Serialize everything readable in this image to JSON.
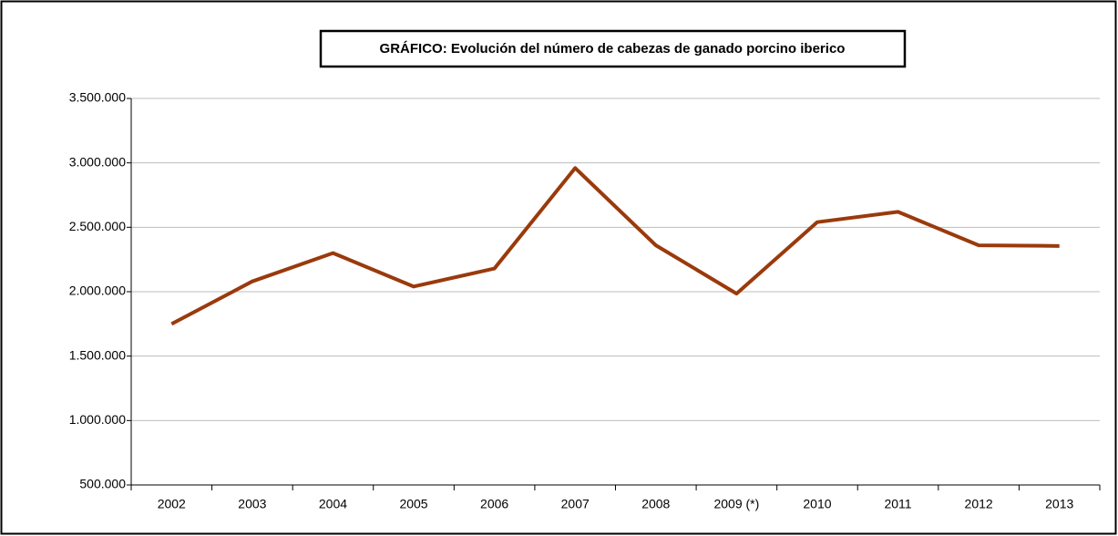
{
  "chart_data": {
    "type": "line",
    "title": "GRÁFICO: Evolución del número de cabezas de ganado porcino iberico",
    "categories": [
      "2002",
      "2003",
      "2004",
      "2005",
      "2006",
      "2007",
      "2008",
      "2009 (*)",
      "2010",
      "2011",
      "2012",
      "2013"
    ],
    "series": [
      {
        "name": "Cabezas de ganado porcino iberico",
        "color": "#9a3a0c",
        "values": [
          1750000,
          2080000,
          2300000,
          2040000,
          2180000,
          2960000,
          2360000,
          1985000,
          2540000,
          2620000,
          2360000,
          2355000
        ]
      }
    ],
    "ylim": [
      500000,
      3500000
    ],
    "yticks": [
      {
        "value": 500000,
        "label": "500.000"
      },
      {
        "value": 1000000,
        "label": "1.000.000"
      },
      {
        "value": 1500000,
        "label": "1.500.000"
      },
      {
        "value": 2000000,
        "label": "2.000.000"
      },
      {
        "value": 2500000,
        "label": "2.500.000"
      },
      {
        "value": 3000000,
        "label": "3.000.000"
      },
      {
        "value": 3500000,
        "label": "3.500.000"
      }
    ],
    "grid": true
  }
}
